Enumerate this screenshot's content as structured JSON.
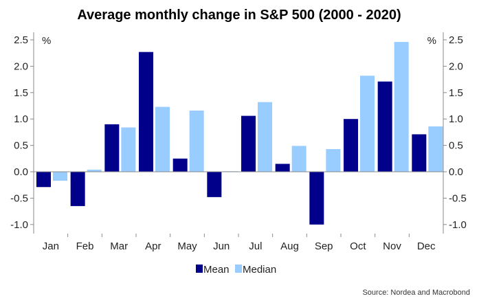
{
  "chart_data": {
    "type": "bar",
    "title": "Average monthly change in S&P 500 (2000   - 2020)",
    "categories": [
      "Jan",
      "Feb",
      "Mar",
      "Apr",
      "May",
      "Jun",
      "Jul",
      "Aug",
      "Sep",
      "Oct",
      "Nov",
      "Dec"
    ],
    "series": [
      {
        "name": "Mean",
        "color": "#00008b",
        "values": [
          -0.29,
          -0.65,
          0.9,
          2.27,
          0.25,
          -0.48,
          1.06,
          0.15,
          -1.0,
          1.0,
          1.71,
          0.71
        ]
      },
      {
        "name": "Median",
        "color": "#99ccff",
        "values": [
          -0.17,
          0.04,
          0.84,
          1.23,
          1.16,
          0.01,
          1.32,
          0.49,
          0.43,
          1.82,
          2.46,
          0.86
        ]
      }
    ],
    "ylim": [
      -1.1,
      2.6
    ],
    "yticks": [
      -1.0,
      -0.5,
      0.0,
      0.5,
      1.0,
      1.5,
      2.0,
      2.5
    ],
    "ytick_labels": [
      "-1.0",
      "-0.5",
      "0.0",
      "0.5",
      "1.0",
      "1.5",
      "2.0",
      "2.5"
    ],
    "left_unit": "%",
    "right_unit": "%",
    "xlabel": "",
    "ylabel": "",
    "legend_position": "bottom-center",
    "source": "Source: Nordea and Macrobond"
  }
}
